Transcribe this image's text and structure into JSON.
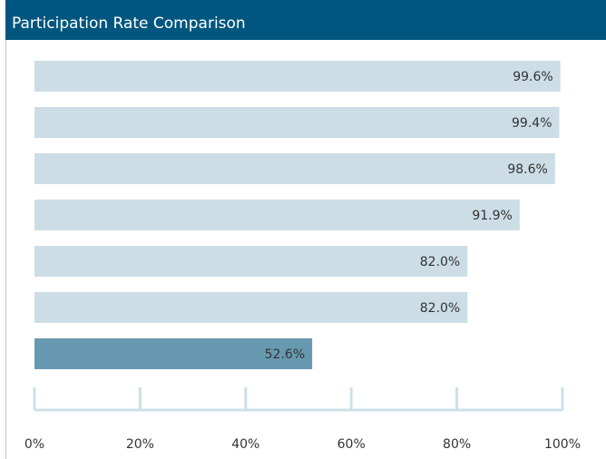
{
  "chart_data": {
    "type": "hbar",
    "title": "Participation Rate Comparison",
    "categories": [
      null,
      null,
      null,
      null,
      null,
      null,
      null
    ],
    "values": [
      99.6,
      99.4,
      98.6,
      91.9,
      82.0,
      82.0,
      52.6
    ],
    "value_labels": [
      "99.6%",
      "99.4%",
      "98.6%",
      "91.9%",
      "82.0%",
      "82.0%",
      "52.6%"
    ],
    "colors": [
      "#ccdde6",
      "#ccdde6",
      "#ccdde6",
      "#ccdde6",
      "#ccdde6",
      "#ccdde6",
      "#6699b0"
    ],
    "xlim": [
      0,
      100
    ],
    "xticks": [
      {
        "value": 0,
        "label": "0%"
      },
      {
        "value": 20,
        "label": "20%"
      },
      {
        "value": 40,
        "label": "40%"
      },
      {
        "value": 60,
        "label": "60%"
      },
      {
        "value": 80,
        "label": "80%"
      },
      {
        "value": 100,
        "label": "100%"
      }
    ]
  }
}
